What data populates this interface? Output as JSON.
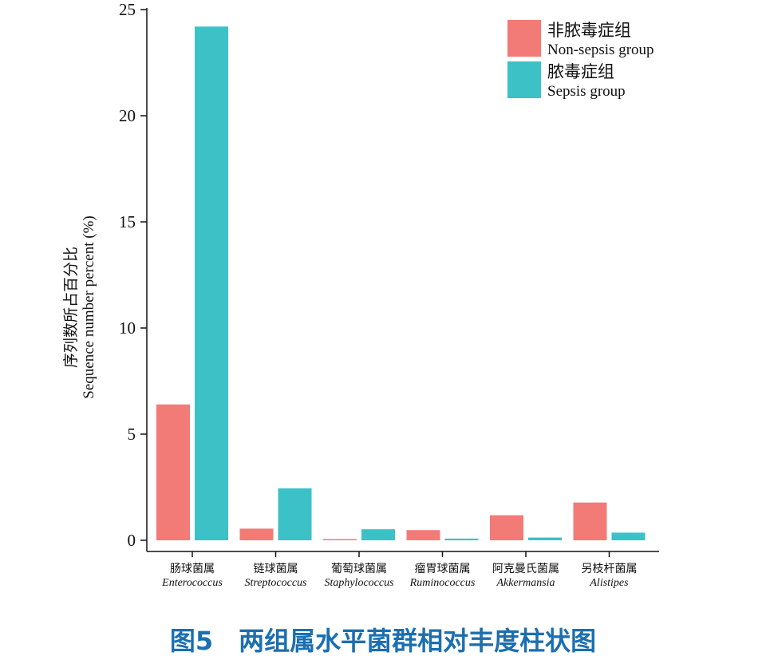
{
  "chart_data": {
    "type": "bar",
    "ylabel_cn": "序列数所占百分比",
    "ylabel_en": "Sequence number percent (%)",
    "ylim": [
      0,
      25
    ],
    "yticks": [
      0,
      5,
      10,
      15,
      20,
      25
    ],
    "categories": [
      {
        "cn": "肠球菌属",
        "en": "Enterococcus"
      },
      {
        "cn": "链球菌属",
        "en": "Streptococcus"
      },
      {
        "cn": "葡萄球菌属",
        "en": "Staphylococcus"
      },
      {
        "cn": "瘤胃球菌属",
        "en": "Ruminococcus"
      },
      {
        "cn": "阿克曼氏菌属",
        "en": "Akkermansia"
      },
      {
        "cn": "另枝杆菌属",
        "en": "Alistipes"
      }
    ],
    "series": [
      {
        "name_cn": "非脓毒症组",
        "name_en": "Non-sepsis group",
        "color": "#f27b77",
        "values": [
          6.4,
          0.55,
          0.05,
          0.48,
          1.18,
          1.78
        ]
      },
      {
        "name_cn": "脓毒症组",
        "name_en": "Sepsis group",
        "color": "#3cc1c6",
        "values": [
          24.2,
          2.45,
          0.52,
          0.08,
          0.13,
          0.36
        ]
      }
    ],
    "legend_position": "top-right",
    "grid": false
  },
  "caption": "图5　两组属水平菌群相对丰度柱状图"
}
